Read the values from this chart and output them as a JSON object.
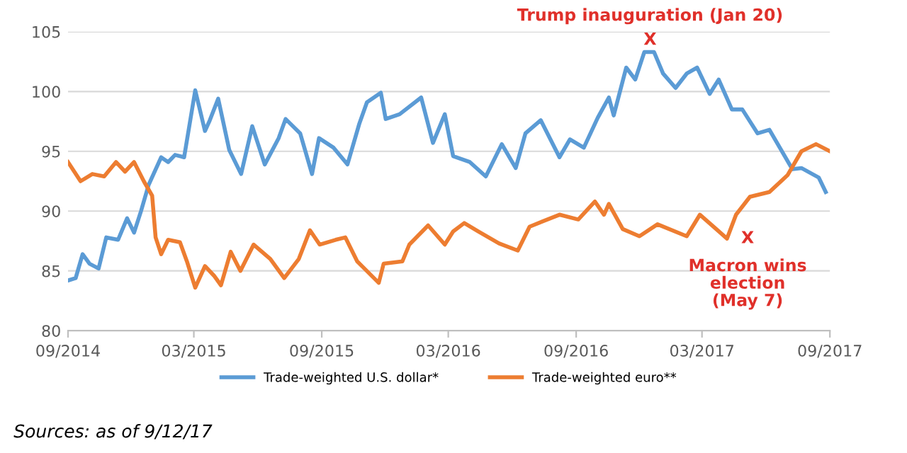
{
  "chart_data": {
    "type": "line",
    "ylim": [
      80,
      105
    ],
    "yticks": [
      80,
      85,
      90,
      95,
      100,
      105
    ],
    "xlim": [
      "2014-09-01",
      "2017-09-01"
    ],
    "xticks": [
      {
        "value": "2014-09-01",
        "label": "09/2014"
      },
      {
        "value": "2015-03-01",
        "label": "03/2015"
      },
      {
        "value": "2015-09-01",
        "label": "09/2015"
      },
      {
        "value": "2016-03-01",
        "label": "03/2016"
      },
      {
        "value": "2016-09-01",
        "label": "09/2016"
      },
      {
        "value": "2017-03-01",
        "label": "03/2017"
      },
      {
        "value": "2017-09-01",
        "label": "09/2017"
      }
    ],
    "grid": "y",
    "legend": "bottom",
    "marker": "none",
    "line_style": "solid",
    "series": [
      {
        "name": "Trade-weighted U.S. dollar*",
        "color": "#5b9bd5",
        "x": [
          "2014-09-01",
          "2014-09-12",
          "2014-09-22",
          "2014-10-02",
          "2014-10-15",
          "2014-10-26",
          "2014-11-12",
          "2014-11-25",
          "2014-12-05",
          "2014-12-15",
          "2014-12-26",
          "2015-01-13",
          "2015-01-23",
          "2015-02-02",
          "2015-02-15",
          "2015-03-03",
          "2015-03-17",
          "2015-03-24",
          "2015-04-05",
          "2015-04-21",
          "2015-05-08",
          "2015-05-24",
          "2015-06-11",
          "2015-07-01",
          "2015-07-11",
          "2015-08-01",
          "2015-08-18",
          "2015-08-28",
          "2015-09-18",
          "2015-10-08",
          "2015-10-25",
          "2015-11-05",
          "2015-11-25",
          "2015-12-02",
          "2015-12-22",
          "2016-01-22",
          "2016-02-08",
          "2016-02-25",
          "2016-03-08",
          "2016-04-01",
          "2016-04-24",
          "2016-05-17",
          "2016-06-06",
          "2016-06-20",
          "2016-07-12",
          "2016-08-08",
          "2016-08-23",
          "2016-09-12",
          "2016-10-02",
          "2016-10-18",
          "2016-10-25",
          "2016-11-12",
          "2016-11-25",
          "2016-12-08",
          "2016-12-22",
          "2017-01-04",
          "2017-01-22",
          "2017-02-07",
          "2017-02-22",
          "2017-03-12",
          "2017-03-25",
          "2017-04-13",
          "2017-04-28",
          "2017-05-20",
          "2017-06-06",
          "2017-07-09",
          "2017-07-22",
          "2017-08-16",
          "2017-08-26"
        ],
        "values": [
          84.2,
          84.4,
          86.4,
          85.6,
          85.2,
          87.8,
          87.6,
          89.4,
          88.2,
          90.0,
          92.2,
          94.5,
          94.1,
          94.7,
          94.5,
          100.1,
          96.7,
          97.6,
          99.4,
          95.1,
          93.1,
          97.1,
          93.9,
          96.1,
          97.7,
          96.5,
          93.1,
          96.1,
          95.3,
          93.9,
          97.3,
          99.1,
          99.9,
          97.7,
          98.1,
          99.5,
          95.7,
          98.1,
          94.6,
          94.1,
          92.9,
          95.6,
          93.6,
          96.5,
          97.6,
          94.5,
          96.0,
          95.3,
          97.8,
          99.5,
          98.0,
          102.0,
          101.0,
          103.3,
          103.3,
          101.5,
          100.3,
          101.5,
          102.0,
          99.8,
          101.0,
          98.5,
          98.5,
          96.5,
          96.8,
          93.5,
          93.6,
          92.8,
          91.6
        ]
      },
      {
        "name": "Trade-weighted euro**",
        "color": "#ed7d31",
        "x": [
          "2014-09-01",
          "2014-09-19",
          "2014-10-06",
          "2014-10-23",
          "2014-11-09",
          "2014-11-22",
          "2014-12-05",
          "2014-12-19",
          "2014-12-31",
          "2015-01-05",
          "2015-01-13",
          "2015-01-23",
          "2015-02-09",
          "2015-02-19",
          "2015-03-03",
          "2015-03-17",
          "2015-03-30",
          "2015-04-09",
          "2015-04-23",
          "2015-05-07",
          "2015-05-26",
          "2015-06-19",
          "2015-07-09",
          "2015-07-30",
          "2015-08-15",
          "2015-08-29",
          "2015-09-21",
          "2015-10-05",
          "2015-10-22",
          "2015-11-22",
          "2015-11-29",
          "2015-12-26",
          "2016-01-05",
          "2016-02-01",
          "2016-02-25",
          "2016-03-08",
          "2016-03-24",
          "2016-04-13",
          "2016-05-13",
          "2016-06-09",
          "2016-06-26",
          "2016-08-08",
          "2016-09-04",
          "2016-09-28",
          "2016-10-11",
          "2016-10-18",
          "2016-11-07",
          "2016-12-01",
          "2016-12-27",
          "2017-02-07",
          "2017-02-26",
          "2017-04-06",
          "2017-04-19",
          "2017-05-09",
          "2017-06-06",
          "2017-07-02",
          "2017-07-22",
          "2017-08-12",
          "2017-09-01"
        ],
        "values": [
          94.1,
          92.5,
          93.1,
          92.9,
          94.1,
          93.3,
          94.1,
          92.5,
          91.3,
          87.8,
          86.4,
          87.6,
          87.4,
          85.8,
          83.6,
          85.4,
          84.6,
          83.8,
          86.6,
          85.0,
          87.2,
          86.0,
          84.4,
          86.0,
          88.4,
          87.2,
          87.6,
          87.8,
          85.8,
          84.0,
          85.6,
          85.8,
          87.2,
          88.8,
          87.2,
          88.3,
          89.0,
          88.3,
          87.3,
          86.7,
          88.7,
          89.7,
          89.3,
          90.8,
          89.7,
          90.6,
          88.5,
          87.9,
          88.9,
          87.9,
          89.7,
          87.7,
          89.7,
          91.2,
          91.6,
          93.0,
          95.0,
          95.6,
          95.0
        ]
      }
    ],
    "annotations": [
      "Trump inauguration (Jan 20)",
      "X",
      "X",
      "Macron wins\nelection\n(May 7)",
      "Sources: as of 9/12/17"
    ]
  }
}
